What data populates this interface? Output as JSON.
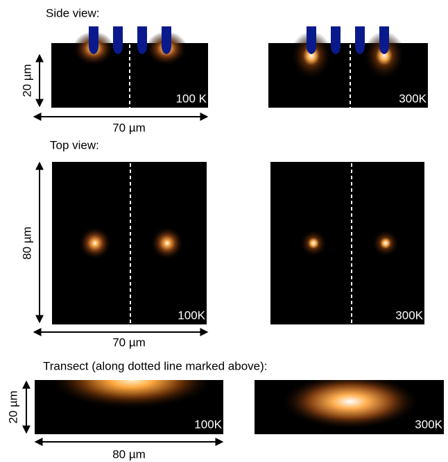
{
  "side_view": {
    "heading": "Side view:",
    "height_label": "20 µm",
    "width_label": "70 µm",
    "panels": [
      {
        "temperature_label": "100 K"
      },
      {
        "temperature_label": "300K"
      }
    ]
  },
  "top_view": {
    "heading": "Top view:",
    "height_label": "80 µm",
    "width_label": "70 µm",
    "panels": [
      {
        "temperature_label": "100K"
      },
      {
        "temperature_label": "300K"
      }
    ]
  },
  "transect": {
    "heading": "Transect (along dotted line marked above):",
    "height_label": "20 µm",
    "width_label": "80 µm",
    "panels": [
      {
        "temperature_label": "100K"
      },
      {
        "temperature_label": "300K"
      }
    ]
  }
}
